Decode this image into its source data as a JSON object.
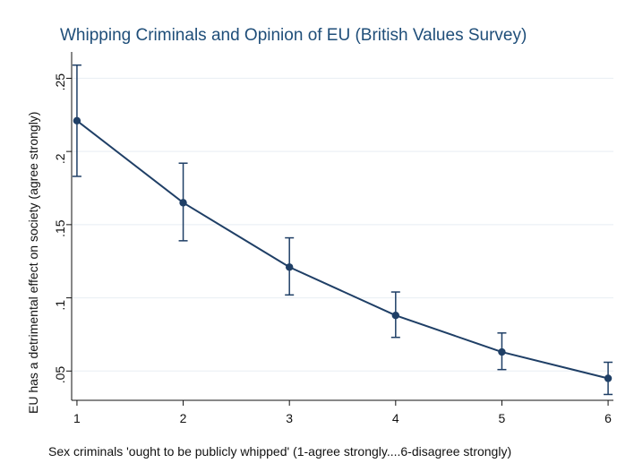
{
  "chart_data": {
    "type": "line",
    "title": "Whipping Criminals and Opinion of EU (British Values Survey)",
    "xlabel": "Sex criminals 'ought to be publicly whipped' (1-agree strongly....6-disagree strongly)",
    "ylabel": "EU has a detrimental effect on society (agree strongly)",
    "x": [
      1,
      2,
      3,
      4,
      5,
      6
    ],
    "x_tick_labels": [
      "1",
      "2",
      "3",
      "4",
      "5",
      "6"
    ],
    "y_ticks": [
      0.05,
      0.1,
      0.15,
      0.2,
      0.25
    ],
    "y_tick_labels": [
      ".05",
      ".1",
      ".15",
      ".2",
      ".25"
    ],
    "xlim": [
      0.95,
      6.05
    ],
    "ylim": [
      0.03,
      0.268
    ],
    "grid": true,
    "series": [
      {
        "values": [
          0.221,
          0.165,
          0.121,
          0.088,
          0.063,
          0.045
        ],
        "ci_lower": [
          0.183,
          0.139,
          0.102,
          0.073,
          0.051,
          0.034
        ],
        "ci_upper": [
          0.259,
          0.192,
          0.141,
          0.104,
          0.076,
          0.056
        ]
      }
    ],
    "colors": {
      "series": "#1f3f66",
      "title": "#1f4e79",
      "grid": "#e8eef3",
      "axis": "#111111"
    }
  }
}
